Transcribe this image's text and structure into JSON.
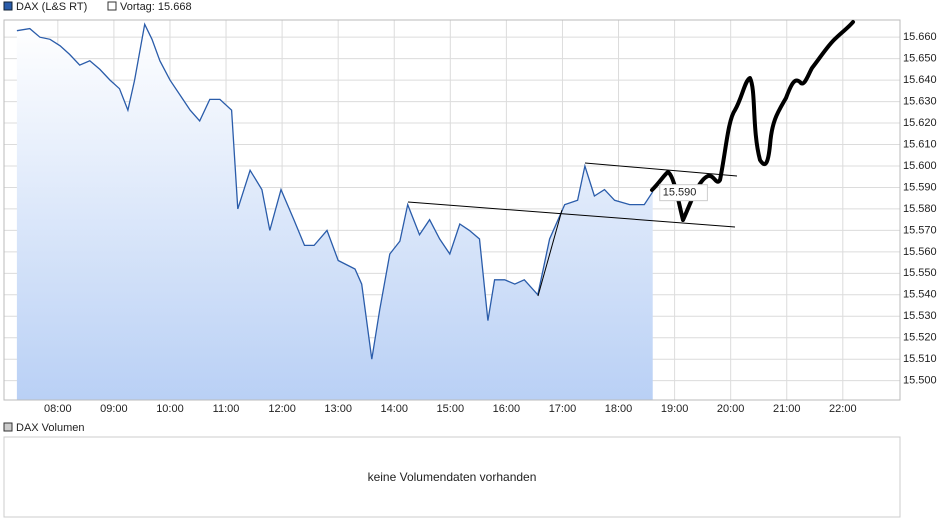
{
  "chart_data": {
    "type": "line",
    "series": [
      {
        "name": "DAX (L&S RT)",
        "color": "#2a5caa",
        "x": [
          7.27,
          7.5,
          7.68,
          7.86,
          8.04,
          8.21,
          8.39,
          8.57,
          8.75,
          8.93,
          9.1,
          9.25,
          9.37,
          9.55,
          9.68,
          9.82,
          10.0,
          10.18,
          10.36,
          10.53,
          10.71,
          10.89,
          11.1,
          11.21,
          11.43,
          11.64,
          11.78,
          11.98,
          12.21,
          12.4,
          12.57,
          12.8,
          13.0,
          13.3,
          13.42,
          13.6,
          13.74,
          13.92,
          14.1,
          14.24,
          14.45,
          14.63,
          14.81,
          14.99,
          15.17,
          15.34,
          15.52,
          15.67,
          15.79,
          15.97,
          16.15,
          16.32,
          16.56,
          16.77,
          17.04,
          17.27,
          17.4,
          17.57,
          17.75,
          17.93,
          18.2,
          18.46,
          18.61
        ],
        "values": [
          15663,
          15664,
          15660,
          15659,
          15656,
          15652,
          15647,
          15649,
          15645,
          15640,
          15636,
          15626,
          15640,
          15666,
          15659,
          15649,
          15640,
          15633,
          15626,
          15621,
          15631,
          15631,
          15626,
          15580,
          15598,
          15589,
          15570,
          15589,
          15575,
          15563,
          15563,
          15570,
          15556,
          15552,
          15545,
          15510,
          15533,
          15559,
          15565,
          15582,
          15568,
          15575,
          15566,
          15559,
          15573,
          15570,
          15566,
          15528,
          15547,
          15547,
          15545,
          15547,
          15540,
          15566,
          15582,
          15584,
          15600,
          15586,
          15589,
          15584,
          15582,
          15582,
          15588
        ]
      }
    ],
    "last_value_label": "15.590",
    "previous_close": 15668,
    "previous_close_label": "Vortag: 15.668",
    "xlim": [
      7.04,
      23.02
    ],
    "xticks": [
      {
        "value": 8,
        "label": "08:00"
      },
      {
        "value": 9,
        "label": "09:00"
      },
      {
        "value": 10,
        "label": "10:00"
      },
      {
        "value": 11,
        "label": "11:00"
      },
      {
        "value": 12,
        "label": "12:00"
      },
      {
        "value": 13,
        "label": "13:00"
      },
      {
        "value": 14,
        "label": "14:00"
      },
      {
        "value": 15,
        "label": "15:00"
      },
      {
        "value": 16,
        "label": "16:00"
      },
      {
        "value": 17,
        "label": "17:00"
      },
      {
        "value": 18,
        "label": "18:00"
      },
      {
        "value": 19,
        "label": "19:00"
      },
      {
        "value": 20,
        "label": "20:00"
      },
      {
        "value": 21,
        "label": "21:00"
      },
      {
        "value": 22,
        "label": "22:00"
      }
    ],
    "ylim": [
      15491,
      15668
    ],
    "yticks": [
      {
        "value": 15500,
        "label": "15.500"
      },
      {
        "value": 15510,
        "label": "15.510"
      },
      {
        "value": 15520,
        "label": "15.520"
      },
      {
        "value": 15530,
        "label": "15.530"
      },
      {
        "value": 15540,
        "label": "15.540"
      },
      {
        "value": 15550,
        "label": "15.550"
      },
      {
        "value": 15560,
        "label": "15.560"
      },
      {
        "value": 15570,
        "label": "15.570"
      },
      {
        "value": 15580,
        "label": "15.580"
      },
      {
        "value": 15590,
        "label": "15.590"
      },
      {
        "value": 15600,
        "label": "15.600"
      },
      {
        "value": 15610,
        "label": "15.610"
      },
      {
        "value": 15620,
        "label": "15.620"
      },
      {
        "value": 15630,
        "label": "15.630"
      },
      {
        "value": 15640,
        "label": "15.640"
      },
      {
        "value": 15650,
        "label": "15.650"
      },
      {
        "value": 15660,
        "label": "15.660"
      }
    ],
    "grid": true,
    "volume_title": "DAX Volumen",
    "volume_message": "keine Volumendaten vorhanden"
  }
}
